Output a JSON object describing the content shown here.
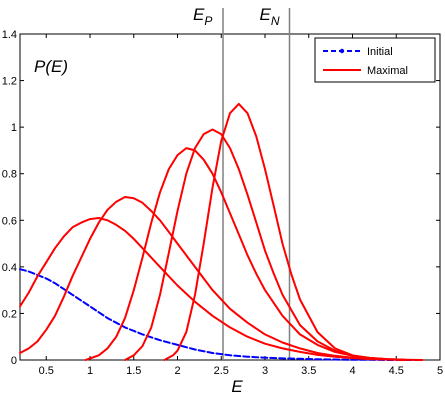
{
  "chart_data": {
    "type": "line",
    "title": "",
    "xlabel": "E",
    "ylabel": "P(E)",
    "xlim": [
      0.2,
      5.0
    ],
    "ylim": [
      0,
      1.4
    ],
    "x_ticks": [
      "0.5",
      "1",
      "1.5",
      "2",
      "2.5",
      "3",
      "3.5",
      "4",
      "4.5",
      "5"
    ],
    "y_ticks": [
      "0",
      "0.2",
      "0.4",
      "0.6",
      "0.8",
      "1",
      "1.2",
      "1.4"
    ],
    "grid": false,
    "legend_position": "top-right",
    "vertical_lines": [
      {
        "label_main": "E",
        "label_sub": "P",
        "x": 2.52
      },
      {
        "label_main": "E",
        "label_sub": "N",
        "x": 3.28
      }
    ],
    "series": [
      {
        "name": "Initial",
        "style": "dashed",
        "color": "#0000ff",
        "x": [
          0.2,
          0.3,
          0.4,
          0.5,
          0.6,
          0.8,
          1.0,
          1.2,
          1.4,
          1.6,
          1.8,
          2.0,
          2.2,
          2.4,
          2.6,
          2.8,
          3.0,
          3.2,
          3.4,
          3.6,
          3.8,
          4.0,
          4.2,
          4.4,
          4.6,
          4.8
        ],
        "y": [
          0.39,
          0.38,
          0.365,
          0.35,
          0.33,
          0.28,
          0.23,
          0.18,
          0.14,
          0.11,
          0.085,
          0.065,
          0.045,
          0.03,
          0.02,
          0.014,
          0.01,
          0.007,
          0.005,
          0.003,
          0.002,
          0.001,
          0.001,
          0.0,
          0.0,
          0.0
        ]
      },
      {
        "name": "Maximal",
        "style": "solid",
        "color": "#ff0000",
        "x": [
          0.2,
          0.3,
          0.4,
          0.5,
          0.6,
          0.7,
          0.8,
          0.9,
          1.0,
          1.1,
          1.2,
          1.3,
          1.4,
          1.5,
          1.6,
          1.8,
          2.0,
          2.2,
          2.4,
          2.6,
          2.8,
          3.0,
          3.2,
          3.4,
          3.6,
          3.8,
          4.0,
          4.2,
          4.4,
          4.6
        ],
        "y": [
          0.23,
          0.29,
          0.36,
          0.42,
          0.48,
          0.53,
          0.57,
          0.59,
          0.605,
          0.61,
          0.6,
          0.58,
          0.555,
          0.52,
          0.48,
          0.4,
          0.32,
          0.25,
          0.19,
          0.14,
          0.1,
          0.07,
          0.05,
          0.035,
          0.022,
          0.014,
          0.008,
          0.004,
          0.002,
          0.0
        ]
      },
      {
        "name": "",
        "style": "solid",
        "color": "#ff0000",
        "x": [
          0.2,
          0.3,
          0.4,
          0.5,
          0.6,
          0.7,
          0.8,
          0.9,
          1.0,
          1.1,
          1.2,
          1.3,
          1.4,
          1.5,
          1.6,
          1.7,
          1.8,
          1.9,
          2.0,
          2.2,
          2.4,
          2.6,
          2.8,
          3.0,
          3.2,
          3.4,
          3.6,
          3.8,
          4.0,
          4.2,
          4.4
        ],
        "y": [
          0.03,
          0.05,
          0.08,
          0.13,
          0.19,
          0.27,
          0.36,
          0.44,
          0.52,
          0.59,
          0.645,
          0.68,
          0.7,
          0.695,
          0.675,
          0.64,
          0.6,
          0.55,
          0.5,
          0.4,
          0.3,
          0.22,
          0.16,
          0.11,
          0.075,
          0.05,
          0.03,
          0.018,
          0.01,
          0.005,
          0.002
        ]
      },
      {
        "name": "",
        "style": "solid",
        "color": "#ff0000",
        "x": [
          0.95,
          1.1,
          1.2,
          1.3,
          1.4,
          1.5,
          1.6,
          1.7,
          1.8,
          1.9,
          2.0,
          2.1,
          2.2,
          2.3,
          2.4,
          2.5,
          2.6,
          2.7,
          2.8,
          2.9,
          3.0,
          3.2,
          3.4,
          3.6,
          3.8,
          4.0,
          4.2,
          4.4,
          4.6
        ],
        "y": [
          0.0,
          0.02,
          0.05,
          0.1,
          0.18,
          0.3,
          0.44,
          0.59,
          0.72,
          0.82,
          0.88,
          0.91,
          0.9,
          0.86,
          0.8,
          0.72,
          0.63,
          0.54,
          0.45,
          0.37,
          0.3,
          0.19,
          0.11,
          0.065,
          0.035,
          0.018,
          0.009,
          0.004,
          0.001
        ]
      },
      {
        "name": "",
        "style": "solid",
        "color": "#ff0000",
        "x": [
          1.4,
          1.5,
          1.6,
          1.7,
          1.8,
          1.9,
          2.0,
          2.1,
          2.2,
          2.3,
          2.4,
          2.5,
          2.6,
          2.7,
          2.8,
          2.9,
          3.0,
          3.1,
          3.2,
          3.4,
          3.6,
          3.8,
          4.0,
          4.2,
          4.4,
          4.6
        ],
        "y": [
          0.0,
          0.02,
          0.06,
          0.14,
          0.28,
          0.46,
          0.64,
          0.8,
          0.91,
          0.97,
          0.99,
          0.97,
          0.91,
          0.82,
          0.71,
          0.59,
          0.47,
          0.37,
          0.28,
          0.15,
          0.08,
          0.04,
          0.018,
          0.008,
          0.003,
          0.001
        ]
      },
      {
        "name": "",
        "style": "solid",
        "color": "#ff0000",
        "x": [
          1.85,
          1.95,
          2.0,
          2.1,
          2.2,
          2.3,
          2.4,
          2.5,
          2.6,
          2.7,
          2.8,
          2.9,
          3.0,
          3.1,
          3.2,
          3.3,
          3.4,
          3.6,
          3.8,
          4.0,
          4.2,
          4.4,
          4.6,
          4.8
        ],
        "y": [
          0.0,
          0.02,
          0.04,
          0.12,
          0.28,
          0.5,
          0.74,
          0.94,
          1.06,
          1.1,
          1.06,
          0.96,
          0.82,
          0.66,
          0.5,
          0.37,
          0.26,
          0.12,
          0.05,
          0.02,
          0.008,
          0.003,
          0.001,
          0.0
        ]
      }
    ]
  }
}
